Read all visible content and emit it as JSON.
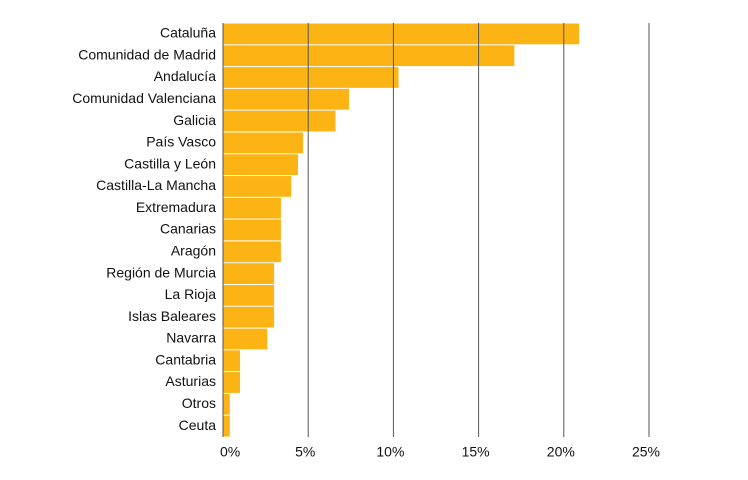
{
  "chart_data": {
    "type": "bar",
    "orientation": "horizontal",
    "categories": [
      "Cataluña",
      "Comunidad de Madrid",
      "Andalucía",
      "Comunidad Valenciana",
      "Galicia",
      "País Vasco",
      "Castilla y León",
      "Castilla-La Mancha",
      "Extremadura",
      "Canarias",
      "Aragón",
      "Región de Murcia",
      "La Rioja",
      "Islas Baleares",
      "Navarra",
      "Cantabria",
      "Asturias",
      "Otros",
      "Ceuta"
    ],
    "values": [
      20.9,
      17.1,
      10.3,
      7.4,
      6.6,
      4.7,
      4.4,
      4.0,
      3.4,
      3.4,
      3.4,
      3.0,
      3.0,
      3.0,
      2.6,
      1.0,
      1.0,
      0.4,
      0.4
    ],
    "color": "#fcb415",
    "xlim": [
      0,
      25
    ],
    "xticks": [
      {
        "value": 0,
        "label": "0%"
      },
      {
        "value": 5,
        "label": "5%"
      },
      {
        "value": 10,
        "label": "10%"
      },
      {
        "value": 15,
        "label": "15%"
      },
      {
        "value": 20,
        "label": "20%"
      },
      {
        "value": 25,
        "label": "25%"
      }
    ],
    "grid": true
  }
}
